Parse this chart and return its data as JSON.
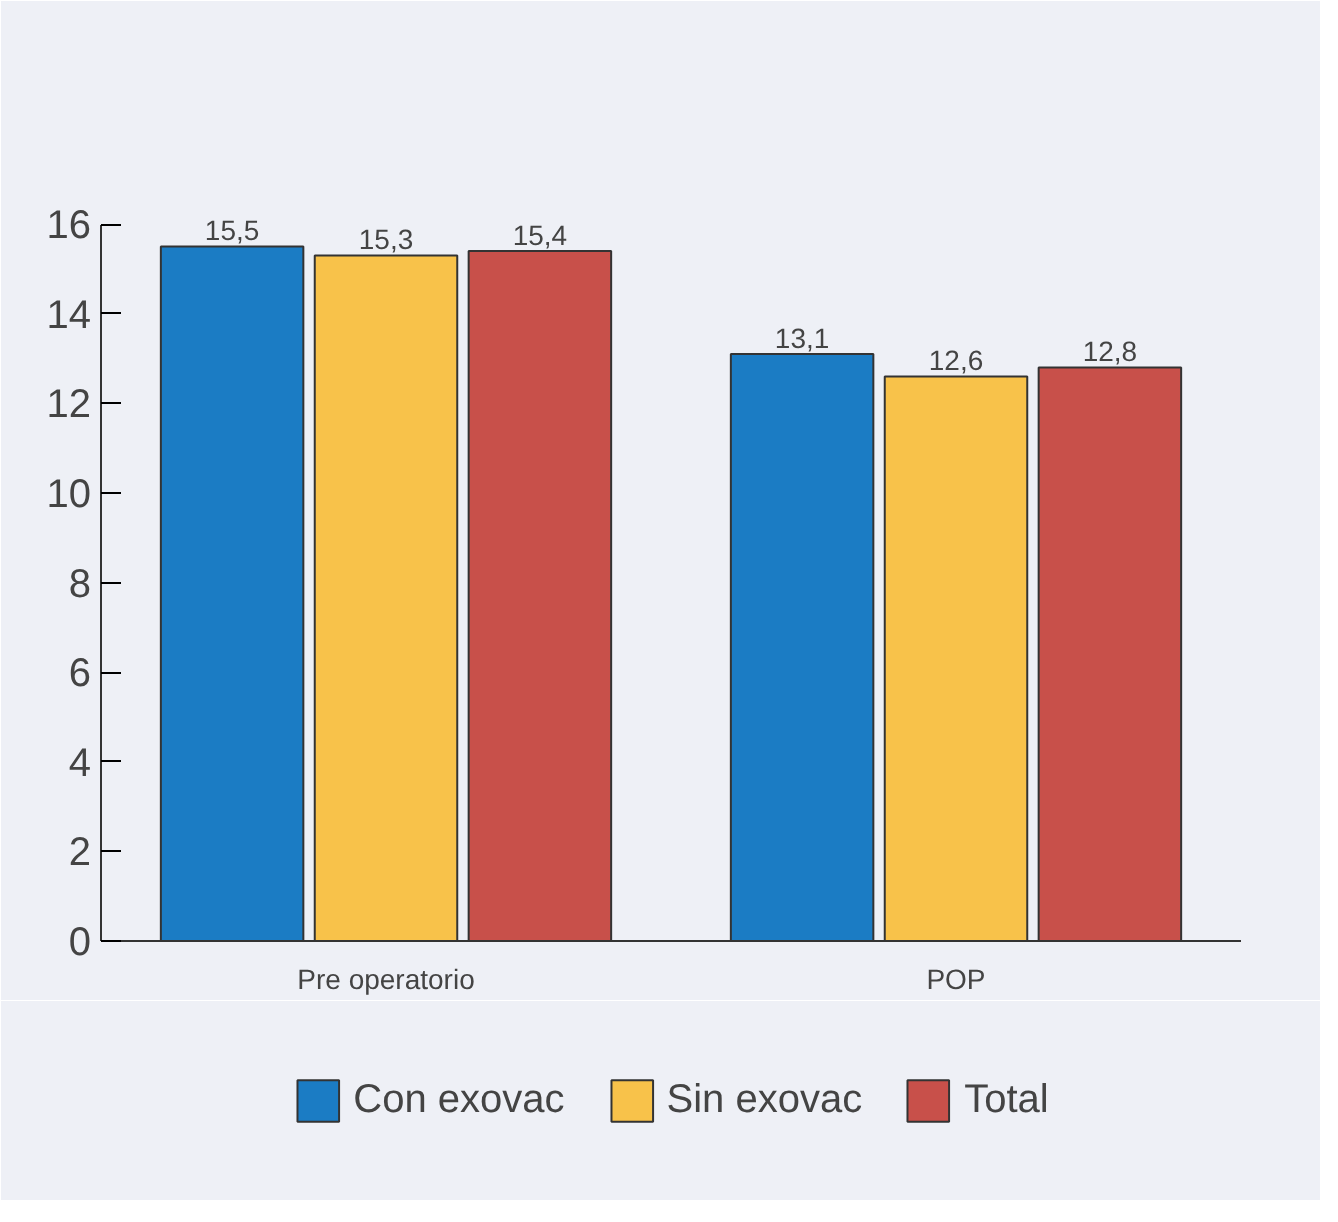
{
  "chart_data": {
    "type": "bar",
    "categories": [
      "Pre operatorio",
      "POP"
    ],
    "series": [
      {
        "name": "Con exovac",
        "color": "#1b7cc4",
        "values": [
          15.5,
          13.1
        ],
        "value_labels": [
          "15,5",
          "13,1"
        ]
      },
      {
        "name": "Sin exovac",
        "color": "#f8c24a",
        "values": [
          15.3,
          12.6
        ],
        "value_labels": [
          "15,3",
          "12,6"
        ]
      },
      {
        "name": "Total",
        "color": "#c8504a",
        "values": [
          15.4,
          12.8
        ],
        "value_labels": [
          "15,4",
          "12,8"
        ]
      }
    ],
    "ylim": [
      0,
      16
    ],
    "yticks": [
      0,
      2,
      4,
      6,
      8,
      10,
      12,
      14,
      16
    ],
    "grid": false,
    "legend": "bottom"
  }
}
